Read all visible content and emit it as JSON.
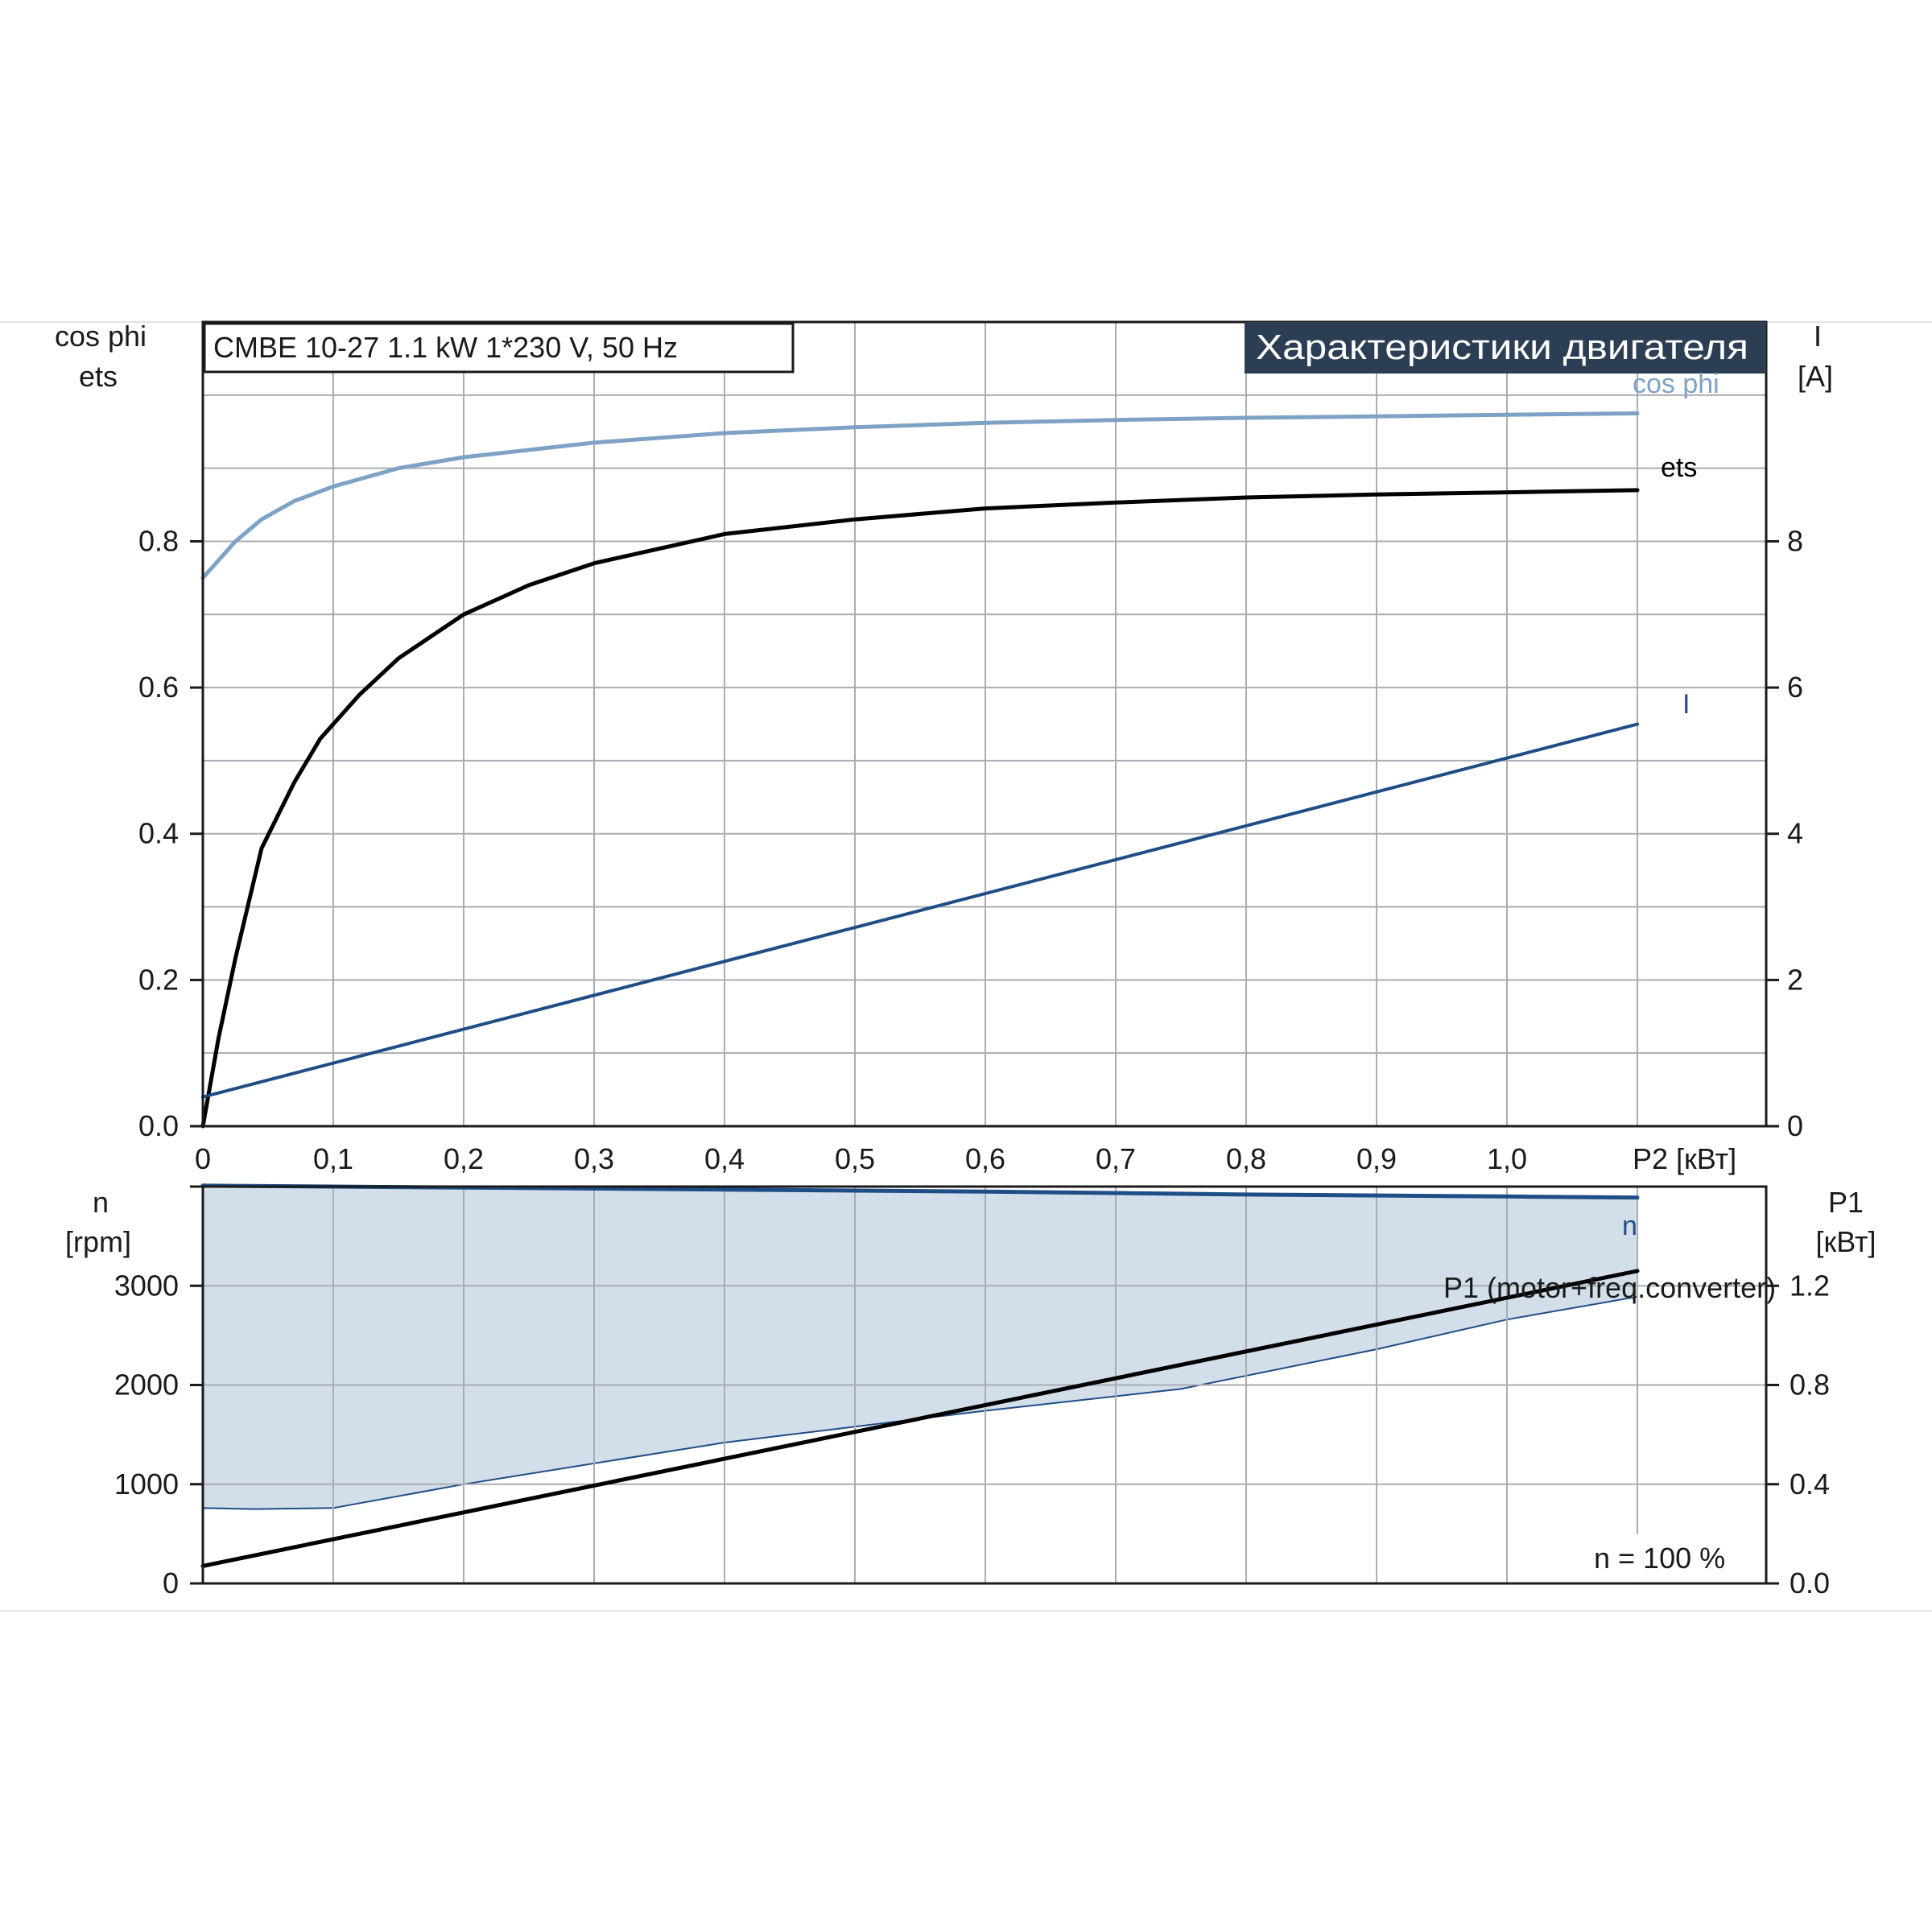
{
  "colors": {
    "cosphi": "#7ea2c5",
    "eta": "#000000",
    "current": "#1f4d86",
    "speed": "#1f4d86",
    "speed_band": "#d2dee9",
    "p1": "#000000",
    "title_bg": "#2c3e54",
    "title_text": "#ffffff"
  },
  "header": {
    "model_box": "CMBE 10-27   1.1 kW   1*230 V, 50 Hz",
    "title": "Характеристики двигателя"
  },
  "chart_data": [
    {
      "type": "line",
      "xlabel": "P2 [кВт]",
      "x_ticks": [
        "0",
        "0,1",
        "0,2",
        "0,3",
        "0,4",
        "0,5",
        "0,6",
        "0,7",
        "0,8",
        "0,9",
        "1,0"
      ],
      "xlim": [
        0,
        1.2
      ],
      "left_axis": {
        "label_1": "cos phi",
        "label_2": "ets",
        "ylim": [
          0,
          1.1
        ],
        "ticks": [
          "0.0",
          "0.2",
          "0.4",
          "0.6",
          "0.8"
        ]
      },
      "right_axis": {
        "label_1": "I",
        "label_2": "[A]",
        "ylim": [
          0,
          11
        ],
        "ticks": [
          "0",
          "2",
          "4",
          "6",
          "8"
        ]
      },
      "grid": true,
      "series": [
        {
          "name": "cos phi",
          "axis": "left",
          "x": [
            0,
            0.01,
            0.025,
            0.045,
            0.07,
            0.1,
            0.15,
            0.2,
            0.3,
            0.4,
            0.5,
            0.6,
            0.7,
            0.8,
            0.9,
            1.0,
            1.1
          ],
          "y": [
            0.75,
            0.77,
            0.8,
            0.83,
            0.855,
            0.875,
            0.9,
            0.915,
            0.935,
            0.948,
            0.956,
            0.962,
            0.966,
            0.969,
            0.971,
            0.973,
            0.975
          ]
        },
        {
          "name": "ets",
          "axis": "left",
          "x": [
            0,
            0.012,
            0.025,
            0.045,
            0.07,
            0.09,
            0.12,
            0.15,
            0.2,
            0.25,
            0.3,
            0.4,
            0.5,
            0.6,
            0.7,
            0.8,
            0.9,
            1.0,
            1.1
          ],
          "y": [
            0,
            0.12,
            0.23,
            0.38,
            0.47,
            0.53,
            0.59,
            0.64,
            0.7,
            0.74,
            0.77,
            0.81,
            0.83,
            0.845,
            0.853,
            0.86,
            0.864,
            0.867,
            0.87
          ]
        },
        {
          "name": "I",
          "axis": "right",
          "x": [
            0,
            1.1
          ],
          "y": [
            0.4,
            5.5
          ]
        }
      ]
    },
    {
      "type": "line",
      "x_ticks": [
        "0",
        "0,1",
        "0,2",
        "0,3",
        "0,4",
        "0,5",
        "0,6",
        "0,7",
        "0,8",
        "0,9",
        "1,0"
      ],
      "xlim": [
        0,
        1.2
      ],
      "left_axis": {
        "label_1": "n",
        "label_2": "[rpm]",
        "ylim": [
          0,
          4000
        ],
        "ticks": [
          "0",
          "1000",
          "2000",
          "3000"
        ]
      },
      "right_axis": {
        "label_1": "P1",
        "label_2": "[кВт]",
        "ylim": [
          0,
          1.6
        ],
        "ticks": [
          "0.0",
          "0.4",
          "0.8",
          "1.2"
        ]
      },
      "grid": true,
      "annotation": "n = 100 %",
      "series": [
        {
          "name": "n",
          "axis": "left",
          "x": [
            0,
            0.2,
            0.4,
            0.6,
            0.8,
            1.0,
            1.1
          ],
          "y": [
            4010,
            3990,
            3970,
            3950,
            3920,
            3900,
            3890
          ]
        },
        {
          "name": "P1 (motor+freq.converter)",
          "axis": "right",
          "x": [
            0,
            1.1
          ],
          "y": [
            0.07,
            1.26
          ]
        }
      ],
      "band": {
        "upper_x": [
          0,
          0.2,
          0.4,
          0.6,
          0.8,
          1.0,
          1.1
        ],
        "upper_y": [
          4010,
          3990,
          3970,
          3950,
          3920,
          3900,
          3890
        ],
        "lower_x": [
          0,
          0.04,
          0.1,
          0.2,
          0.4,
          0.6,
          0.75,
          0.9,
          1.0,
          1.1
        ],
        "lower_y": [
          760,
          750,
          760,
          1000,
          1420,
          1740,
          1960,
          2360,
          2660,
          2890
        ]
      }
    }
  ]
}
